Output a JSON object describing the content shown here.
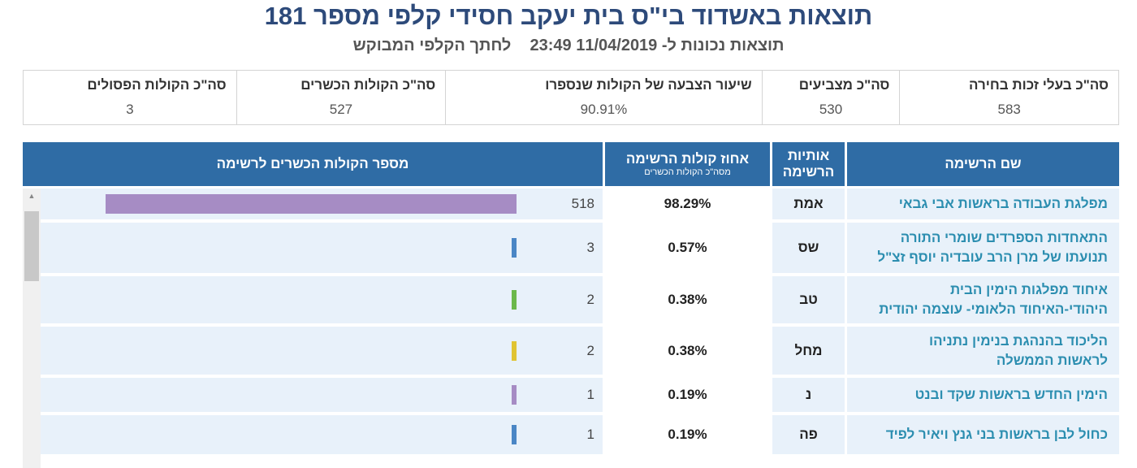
{
  "header": {
    "title": "תוצאות באשדוד בי\"ס בית יעקב חסידי קלפי מספר 181",
    "subtitle_prefix": "תוצאות נכונות ל-",
    "subtitle_datetime": "23:49 11/04/2019",
    "subtitle_suffix": "לחתך הקלפי המבוקש"
  },
  "summary": [
    {
      "label": "סה\"כ בעלי זכות בחירה",
      "value": "583"
    },
    {
      "label": "סה\"כ מצביעים",
      "value": "530"
    },
    {
      "label": "שיעור הצבעה של הקולות שנספרו",
      "value": "90.91%"
    },
    {
      "label": "סה\"כ הקולות הכשרים",
      "value": "527"
    },
    {
      "label": "סה\"כ הקולות הפסולים",
      "value": "3"
    }
  ],
  "table": {
    "headers": {
      "name": "שם הרשימה",
      "letters_line1": "אותיות",
      "letters_line2": "הרשימה",
      "pct_main": "אחוז קולות הרשימה",
      "pct_sub": "מסה\"כ הקולות הכשרים",
      "count": "מספר הקולות הכשרים לרשימה"
    },
    "max_votes": 518,
    "rows": [
      {
        "name_line1": "מפלגת העבודה בראשות אבי גבאי",
        "name_line2": "",
        "letters": "אמת",
        "pct": "98.29%",
        "votes": 518,
        "color": "#a68cc4"
      },
      {
        "name_line1": "התאחדות הספרדים שומרי התורה",
        "name_line2": "תנועתו של מרן הרב עובדיה יוסף זצ\"ל",
        "letters": "שס",
        "pct": "0.57%",
        "votes": 3,
        "color": "#4a86c5"
      },
      {
        "name_line1": "איחוד מפלגות הימין הבית",
        "name_line2": "היהודי-האיחוד הלאומי- עוצמה יהודית",
        "letters": "טב",
        "pct": "0.38%",
        "votes": 2,
        "color": "#6bb84a"
      },
      {
        "name_line1": "הליכוד בהנהגת בנימין נתניהו",
        "name_line2": "לראשות הממשלה",
        "letters": "מחל",
        "pct": "0.38%",
        "votes": 2,
        "color": "#e0c431"
      },
      {
        "name_line1": "הימין החדש בראשות שקד ובנט",
        "name_line2": "",
        "letters": "נ",
        "pct": "0.19%",
        "votes": 1,
        "color": "#a68cc4"
      },
      {
        "name_line1": "כחול לבן בראשות בני גנץ ויאיר לפיד",
        "name_line2": "",
        "letters": "פה",
        "pct": "0.19%",
        "votes": 1,
        "color": "#4a86c5"
      }
    ]
  }
}
